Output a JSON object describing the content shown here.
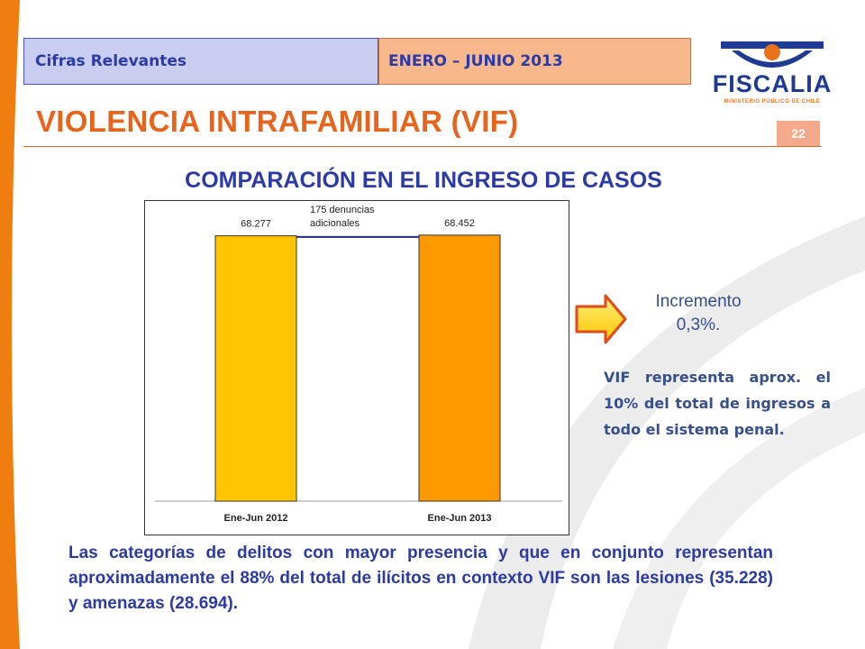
{
  "header": {
    "section": "Cifras Relevantes",
    "period": "ENERO – JUNIO 2013"
  },
  "logo": {
    "name": "FISCALIA",
    "subtitle": "MINISTERIO PÚBLICO DE CHILE",
    "colors": {
      "blue": "#1f3a93",
      "orange": "#e8731b"
    }
  },
  "title": "VIOLENCIA INTRAFAMILIAR (VIF)",
  "page_number": "22",
  "chart_title": "COMPARACIÓN EN EL INGRESO DE CASOS",
  "chart_data": {
    "type": "bar",
    "categories": [
      "Ene-Jun 2012",
      "Ene-Jun 2013"
    ],
    "values": [
      68277,
      68452
    ],
    "data_labels": [
      "68.277",
      "68.452"
    ],
    "colors": [
      "#ffc600",
      "#ff9900"
    ],
    "annotation": "175 denuncias adicionales",
    "ylim": [
      0,
      70500
    ],
    "grid": false,
    "legend": "none"
  },
  "increment": {
    "label": "Incremento",
    "value": "0,3%."
  },
  "vif_note": "VIF representa aprox. el 10% del total de ingresos a todo el sistema penal.",
  "bottom_text": "Las categorías de delitos con mayor presencia y que en conjunto representan aproximadamente el 88% del total de ilícitos en contexto VIF son las lesiones (35.228) y amenazas (28.694).",
  "icons": [
    "right-arrow-icon",
    "fiscalia-logo-icon"
  ]
}
